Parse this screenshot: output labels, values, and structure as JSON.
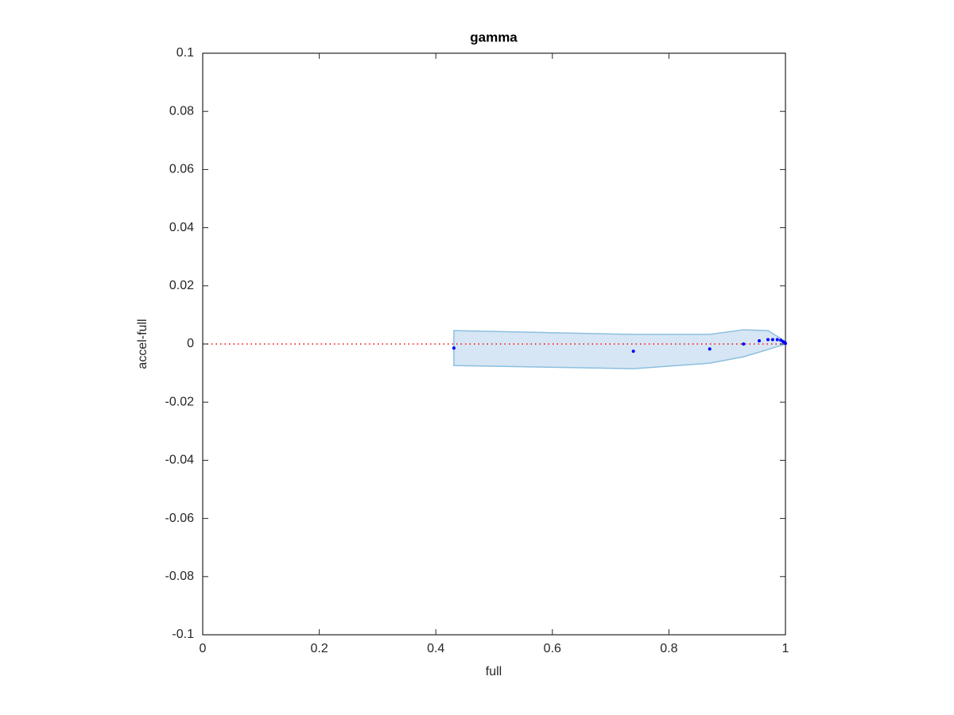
{
  "chart_data": {
    "type": "scatter",
    "title": "gamma",
    "x_label": "full",
    "y_label": "accel-full",
    "xlim": [
      0,
      1
    ],
    "ylim": [
      -0.1,
      0.1
    ],
    "xticks": [
      0,
      0.2,
      0.4,
      0.6,
      0.8,
      1
    ],
    "yticks": [
      -0.1,
      -0.08,
      -0.06,
      -0.04,
      -0.02,
      0,
      0.02,
      0.04,
      0.06,
      0.08,
      0.1
    ],
    "reference_line": {
      "y": 0,
      "color": "#ff0000"
    },
    "band": {
      "color": "#d6e6f4",
      "edge_color": "#8cbfe0",
      "x": [
        0.431,
        0.739,
        0.87,
        0.928,
        0.97,
        0.996,
        1.0
      ],
      "upper": [
        0.0046,
        0.0033,
        0.0033,
        0.0049,
        0.0046,
        0.0014,
        0.0003
      ],
      "lower": [
        -0.0074,
        -0.0085,
        -0.0066,
        -0.0044,
        -0.0019,
        -0.0003,
        0.0
      ]
    },
    "series": [
      {
        "color": "#0000ff",
        "x": [
          0.431,
          0.739,
          0.87,
          0.928,
          0.955,
          0.97,
          0.978,
          0.986,
          0.992,
          0.996,
          0.999,
          1.0
        ],
        "values": [
          -0.0014,
          -0.0025,
          -0.0017,
          0.0,
          0.0011,
          0.0015,
          0.0015,
          0.0015,
          0.0013,
          0.0008,
          0.0005,
          0.0002
        ]
      }
    ]
  }
}
